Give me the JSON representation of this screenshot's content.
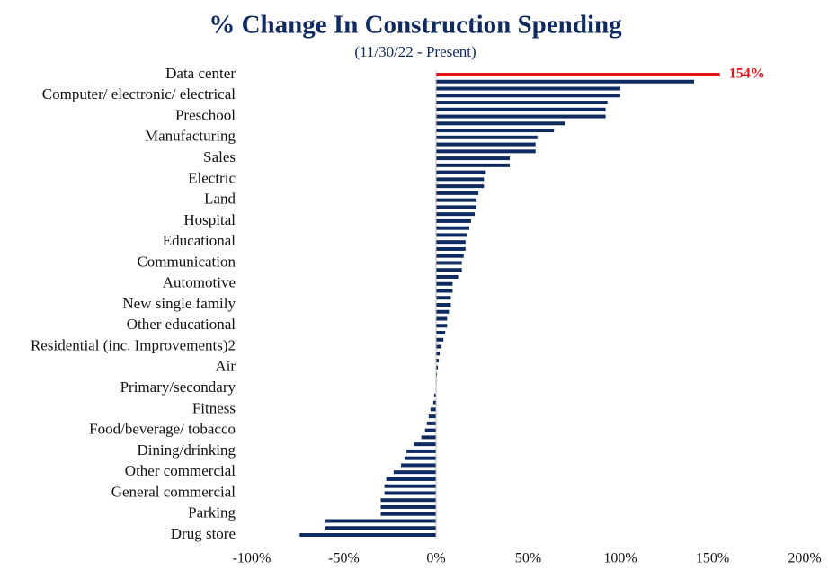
{
  "chart_data": {
    "type": "barh",
    "title": "% Change In Construction Spending",
    "subtitle": "(11/30/22 - Present)",
    "categories": [
      "Data center",
      null,
      null,
      "Computer/ electronic/ electrical",
      null,
      null,
      "Preschool",
      null,
      null,
      "Manufacturing",
      null,
      null,
      "Sales",
      null,
      null,
      "Electric",
      null,
      null,
      "Land",
      null,
      null,
      "Hospital",
      null,
      null,
      "Educational",
      null,
      null,
      "Communication",
      null,
      null,
      "Automotive",
      null,
      null,
      "New single family",
      null,
      null,
      "Other educational",
      null,
      null,
      "Residential (inc. Improvements)2",
      null,
      null,
      "Air",
      null,
      null,
      "Primary/secondary",
      null,
      null,
      "Fitness",
      null,
      null,
      "Food/beverage/ tobacco",
      null,
      null,
      "Dining/drinking",
      null,
      null,
      "Other commercial",
      null,
      null,
      "General commercial",
      null,
      null,
      "Parking",
      null,
      null,
      "Drug store"
    ],
    "values": [
      154,
      140,
      100,
      100,
      93,
      92,
      92,
      70,
      64,
      55,
      54,
      54,
      40,
      40,
      27,
      26,
      26,
      23,
      22,
      22,
      21,
      19,
      18,
      17,
      16,
      16,
      15,
      14,
      14,
      12,
      9,
      9,
      8,
      8,
      7,
      6,
      6,
      5,
      4,
      3,
      2,
      1.5,
      1,
      0.5,
      0.3,
      0,
      -1,
      -1.5,
      -3,
      -4,
      -5,
      -6,
      -8,
      -12,
      -16,
      -17,
      -19,
      -23,
      -27,
      -28,
      -28,
      -30,
      -30,
      -30,
      -60,
      -60,
      -74
    ],
    "value_labels": [
      "154%",
      null,
      null,
      null,
      null,
      null,
      null,
      null,
      null,
      null,
      null,
      null,
      null,
      null,
      null,
      null,
      null,
      null,
      null,
      null,
      null,
      null,
      null,
      null,
      null,
      null,
      null,
      null,
      null,
      null,
      null,
      null,
      null,
      null,
      null,
      null,
      null,
      null,
      null,
      null,
      null,
      null,
      null,
      null,
      null,
      null,
      null,
      null,
      null,
      null,
      null,
      null,
      null,
      null,
      null,
      null,
      null,
      null,
      null,
      null,
      null,
      null,
      null,
      null,
      null,
      null,
      null
    ],
    "color": "#0f2a5f",
    "highlight_color": "#e3121b",
    "xlim": [
      -100,
      200
    ],
    "xticks": [
      {
        "value": -100,
        "label": "-100%"
      },
      {
        "value": -50,
        "label": "-50%"
      },
      {
        "value": 0,
        "label": "0%"
      },
      {
        "value": 50,
        "label": "50%"
      },
      {
        "value": 100,
        "label": "100%"
      },
      {
        "value": 150,
        "label": "150%"
      },
      {
        "value": 200,
        "label": "200%"
      }
    ],
    "grid": false
  }
}
